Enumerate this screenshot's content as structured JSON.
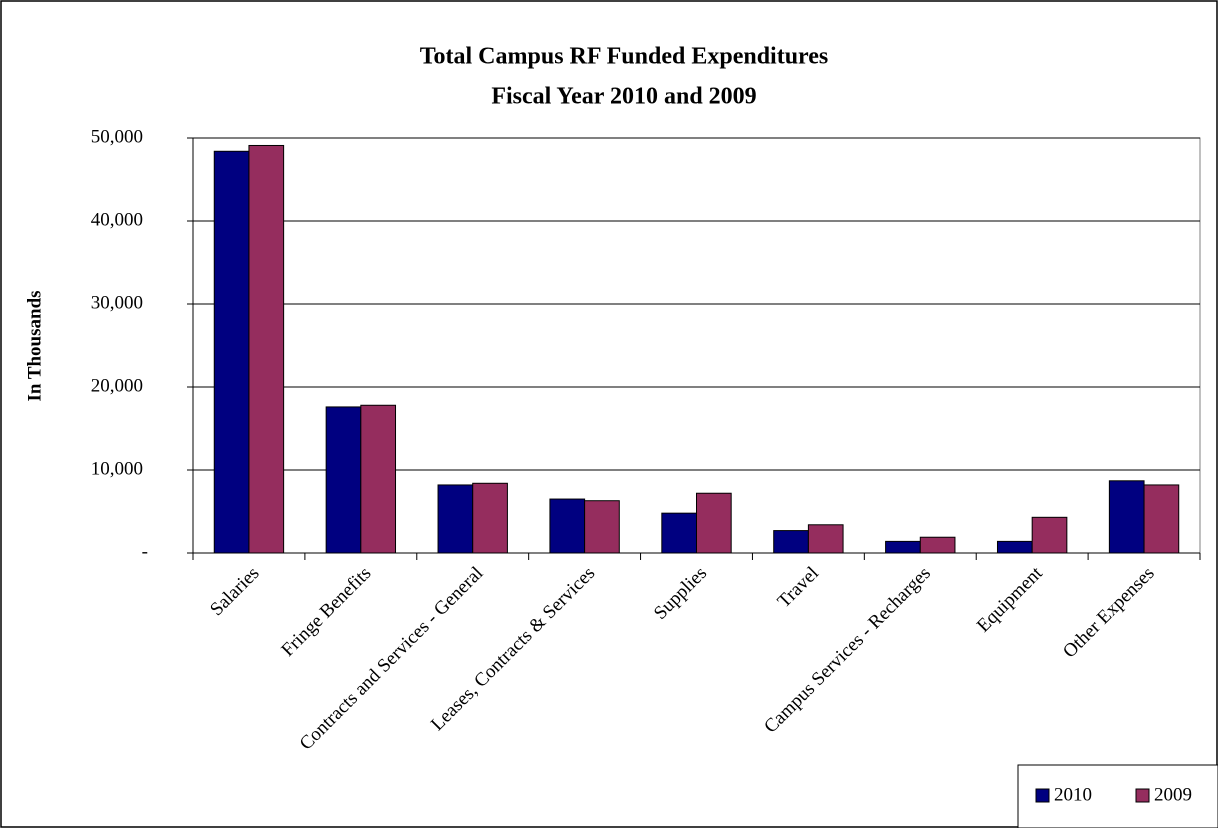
{
  "chart_data": {
    "type": "bar",
    "title": "Total Campus RF Funded Expenditures",
    "subtitle": "Fiscal Year 2010 and 2009",
    "y_label": "In Thousands",
    "categories": [
      "Salaries",
      "Fringe Benefits",
      "Contracts and Services - General",
      "Leases, Contracts & Services",
      "Supplies",
      "Travel",
      "Campus Services - Recharges",
      "Equipment",
      "Other Expenses"
    ],
    "series": [
      {
        "name": "2010",
        "color": "#000080",
        "values": [
          48400,
          17600,
          8200,
          6500,
          4800,
          2700,
          1400,
          1400,
          8700
        ]
      },
      {
        "name": "2009",
        "color": "#952d5e",
        "values": [
          49100,
          17800,
          8400,
          6300,
          7200,
          3400,
          1900,
          4300,
          8200
        ]
      }
    ],
    "ylim": [
      0,
      50000
    ],
    "yticks": [
      {
        "value": 0,
        "label": "-"
      },
      {
        "value": 10000,
        "label": "10,000"
      },
      {
        "value": 20000,
        "label": "20,000"
      },
      {
        "value": 30000,
        "label": "30,000"
      },
      {
        "value": 40000,
        "label": "40,000"
      },
      {
        "value": 50000,
        "label": "50,000"
      }
    ],
    "grid": true,
    "legend": "lower right"
  }
}
